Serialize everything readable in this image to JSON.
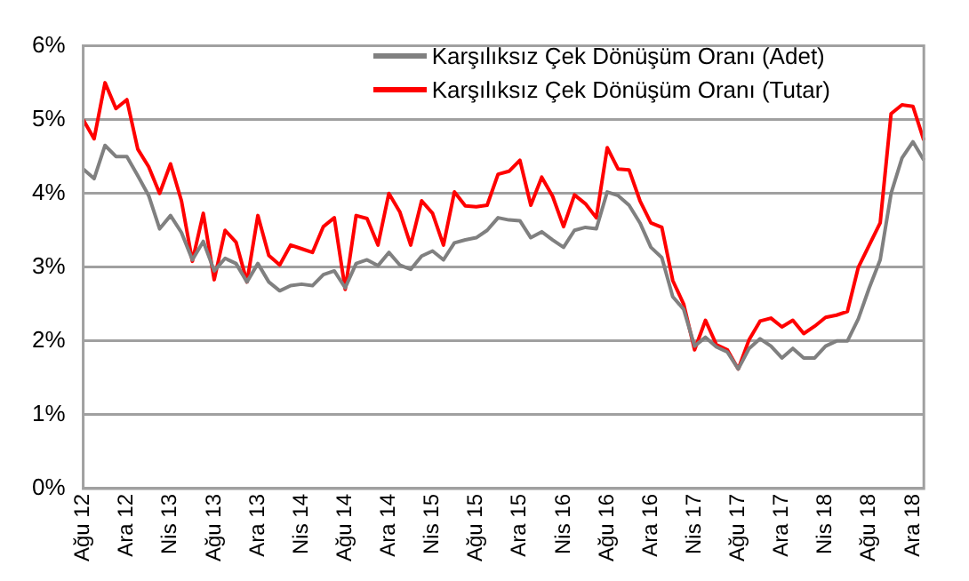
{
  "chart_data": {
    "type": "line",
    "categories": [
      "Ağu 12",
      null,
      null,
      null,
      "Ara 12",
      null,
      null,
      null,
      "Nis 13",
      null,
      null,
      null,
      "Ağu 13",
      null,
      null,
      null,
      "Ara 13",
      null,
      null,
      null,
      "Nis 14",
      null,
      null,
      null,
      "Ağu 14",
      null,
      null,
      null,
      "Ara 14",
      null,
      null,
      null,
      "Nis 15",
      null,
      null,
      null,
      "Ağu 15",
      null,
      null,
      null,
      "Ara 15",
      null,
      null,
      null,
      "Nis 16",
      null,
      null,
      null,
      "Ağu 16",
      null,
      null,
      null,
      "Ara 16",
      null,
      null,
      null,
      "Nis 17",
      null,
      null,
      null,
      "Ağu 17",
      null,
      null,
      null,
      "Ara 17",
      null,
      null,
      null,
      "Nis 18",
      null,
      null,
      null,
      "Ağu 18",
      null,
      null,
      null,
      "Ara 18",
      null
    ],
    "series": [
      {
        "name": "Karşılıksız Çek Dönüşüm Oranı (Adet)",
        "color": "#808080",
        "values": [
          4.33,
          4.2,
          4.65,
          4.5,
          4.5,
          4.24,
          3.97,
          3.52,
          3.7,
          3.47,
          3.1,
          3.35,
          2.95,
          3.12,
          3.05,
          2.8,
          3.05,
          2.8,
          2.68,
          2.75,
          2.77,
          2.75,
          2.9,
          2.95,
          2.72,
          3.05,
          3.1,
          3.02,
          3.2,
          3.03,
          2.97,
          3.15,
          3.22,
          3.1,
          3.33,
          3.37,
          3.4,
          3.5,
          3.67,
          3.64,
          3.63,
          3.4,
          3.48,
          3.37,
          3.27,
          3.5,
          3.54,
          3.52,
          4.02,
          3.97,
          3.84,
          3.6,
          3.27,
          3.13,
          2.6,
          2.43,
          1.93,
          2.05,
          1.92,
          1.85,
          1.62,
          1.9,
          2.03,
          1.93,
          1.77,
          1.9,
          1.77,
          1.77,
          1.93,
          2.0,
          2.0,
          2.3,
          2.72,
          3.1,
          4.0,
          4.48,
          4.7,
          4.45
        ]
      },
      {
        "name": "Karşılıksız Çek Dönüşüm Oranı (Tutar)",
        "color": "#ff0000",
        "values": [
          5.0,
          4.74,
          5.5,
          5.15,
          5.27,
          4.6,
          4.36,
          4.0,
          4.4,
          3.9,
          3.08,
          3.73,
          2.83,
          3.5,
          3.34,
          2.8,
          3.7,
          3.16,
          3.03,
          3.3,
          3.25,
          3.2,
          3.55,
          3.67,
          2.7,
          3.7,
          3.66,
          3.3,
          4.0,
          3.75,
          3.3,
          3.9,
          3.73,
          3.3,
          4.02,
          3.83,
          3.82,
          3.84,
          4.26,
          4.3,
          4.45,
          3.84,
          4.22,
          3.96,
          3.55,
          3.98,
          3.86,
          3.67,
          4.62,
          4.33,
          4.32,
          3.9,
          3.6,
          3.54,
          2.82,
          2.5,
          1.88,
          2.28,
          1.95,
          1.88,
          1.62,
          2.02,
          2.27,
          2.31,
          2.19,
          2.28,
          2.1,
          2.2,
          2.32,
          2.35,
          2.4,
          3.0,
          3.3,
          3.6,
          5.08,
          5.2,
          5.18,
          4.72
        ]
      }
    ],
    "ylim": [
      0,
      6
    ],
    "yticks": [
      {
        "value": 0,
        "label": "0%"
      },
      {
        "value": 1,
        "label": "1%"
      },
      {
        "value": 2,
        "label": "2%"
      },
      {
        "value": 3,
        "label": "3%"
      },
      {
        "value": 4,
        "label": "4%"
      },
      {
        "value": 5,
        "label": "5%"
      },
      {
        "value": 6,
        "label": "6%"
      }
    ],
    "grid": "y",
    "legend": "top right",
    "marker": "none",
    "line_style": "solid"
  }
}
